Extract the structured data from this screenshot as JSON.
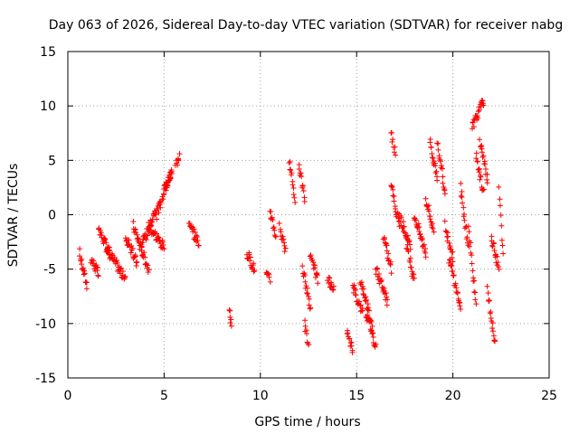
{
  "chart_data": {
    "type": "scatter",
    "title": "Day 063 of 2026, Sidereal Day-to-day VTEC variation (SDTVAR) for receiver nabg",
    "xlabel": "GPS time / hours",
    "ylabel": "SDTVAR / TECUs",
    "xlim": [
      0,
      25
    ],
    "ylim": [
      -15,
      15
    ],
    "xticks": [
      0,
      5,
      10,
      15,
      20,
      25
    ],
    "yticks": [
      -15,
      -10,
      -5,
      0,
      5,
      10,
      15
    ],
    "xtick_labels": [
      "0",
      "5",
      "10",
      "15",
      "20",
      "25"
    ],
    "ytick_labels": [
      "-15",
      "-10",
      "-5",
      "0",
      "5",
      "10",
      "15"
    ],
    "grid": true,
    "marker": "plus",
    "marker_color": "#ff0000",
    "series": [
      {
        "name": "SDTVAR",
        "color": "#ff0000",
        "segments": [
          {
            "x": [
              0.6,
              1.0
            ],
            "y": [
              -3.5,
              -6.5
            ]
          },
          {
            "x": [
              1.2,
              1.6
            ],
            "y": [
              -4.0,
              -5.5
            ]
          },
          {
            "x": [
              1.6,
              2.2
            ],
            "y": [
              -1.5,
              -3.5
            ]
          },
          {
            "x": [
              2.0,
              3.0
            ],
            "y": [
              -3.0,
              -6.0
            ]
          },
          {
            "x": [
              3.0,
              3.6
            ],
            "y": [
              -2.0,
              -4.5
            ]
          },
          {
            "x": [
              3.4,
              4.2
            ],
            "y": [
              -1.0,
              -5.0
            ]
          },
          {
            "x": [
              3.8,
              4.6
            ],
            "y": [
              -3.0,
              0.5
            ]
          },
          {
            "x": [
              4.2,
              5.0
            ],
            "y": [
              -1.0,
              -3.0
            ]
          },
          {
            "x": [
              4.6,
              5.4
            ],
            "y": [
              0.0,
              4.0
            ]
          },
          {
            "x": [
              5.0,
              5.4
            ],
            "y": [
              2.5,
              4.0
            ]
          },
          {
            "x": [
              5.6,
              5.8
            ],
            "y": [
              4.5,
              5.5
            ]
          },
          {
            "x": [
              6.3,
              6.8
            ],
            "y": [
              -1.0,
              -2.5
            ]
          },
          {
            "x": [
              8.4,
              8.5
            ],
            "y": [
              -9.0,
              -10.2
            ]
          },
          {
            "x": [
              9.3,
              9.7
            ],
            "y": [
              -3.5,
              -5.0
            ]
          },
          {
            "x": [
              10.3,
              10.5
            ],
            "y": [
              -5.5,
              -6.0
            ]
          },
          {
            "x": [
              10.5,
              10.8
            ],
            "y": [
              0.5,
              -2.0
            ]
          },
          {
            "x": [
              11.0,
              11.3
            ],
            "y": [
              -1.0,
              -3.5
            ]
          },
          {
            "x": [
              11.5,
              11.8
            ],
            "y": [
              5.0,
              1.5
            ]
          },
          {
            "x": [
              12.0,
              12.3
            ],
            "y": [
              4.5,
              1.5
            ]
          },
          {
            "x": [
              12.2,
              12.6
            ],
            "y": [
              -5.0,
              -8.5
            ]
          },
          {
            "x": [
              12.3,
              12.5
            ],
            "y": [
              -10.0,
              -12.0
            ]
          },
          {
            "x": [
              12.6,
              13.0
            ],
            "y": [
              -4.0,
              -6.0
            ]
          },
          {
            "x": [
              13.5,
              13.8
            ],
            "y": [
              -6.0,
              -7.0
            ]
          },
          {
            "x": [
              14.5,
              14.8
            ],
            "y": [
              -11.0,
              -12.5
            ]
          },
          {
            "x": [
              14.8,
              15.3
            ],
            "y": [
              -6.5,
              -9.0
            ]
          },
          {
            "x": [
              15.2,
              15.8
            ],
            "y": [
              -6.0,
              -10.0
            ]
          },
          {
            "x": [
              15.5,
              16.0
            ],
            "y": [
              -9.0,
              -12.0
            ]
          },
          {
            "x": [
              16.0,
              16.6
            ],
            "y": [
              -5.0,
              -8.0
            ]
          },
          {
            "x": [
              16.4,
              16.8
            ],
            "y": [
              -2.0,
              -5.0
            ]
          },
          {
            "x": [
              16.8,
              17.0
            ],
            "y": [
              7.5,
              5.5
            ]
          },
          {
            "x": [
              16.8,
              17.2
            ],
            "y": [
              3.0,
              -1.0
            ]
          },
          {
            "x": [
              17.2,
              17.8
            ],
            "y": [
              0.0,
              -3.0
            ]
          },
          {
            "x": [
              17.6,
              18.0
            ],
            "y": [
              -3.0,
              -6.0
            ]
          },
          {
            "x": [
              18.0,
              18.6
            ],
            "y": [
              0.0,
              -3.5
            ]
          },
          {
            "x": [
              18.6,
              19.0
            ],
            "y": [
              1.5,
              -1.5
            ]
          },
          {
            "x": [
              18.8,
              19.2
            ],
            "y": [
              7.0,
              3.0
            ]
          },
          {
            "x": [
              19.2,
              19.6
            ],
            "y": [
              6.5,
              2.0
            ]
          },
          {
            "x": [
              19.6,
              20.0
            ],
            "y": [
              -1.0,
              -4.0
            ]
          },
          {
            "x": [
              19.8,
              20.4
            ],
            "y": [
              -4.0,
              -8.5
            ]
          },
          {
            "x": [
              20.4,
              20.8
            ],
            "y": [
              2.5,
              -3.0
            ]
          },
          {
            "x": [
              20.8,
              21.2
            ],
            "y": [
              -1.0,
              -8.5
            ]
          },
          {
            "x": [
              21.0,
              21.6
            ],
            "y": [
              8.0,
              10.5
            ]
          },
          {
            "x": [
              21.2,
              21.6
            ],
            "y": [
              5.5,
              2.0
            ]
          },
          {
            "x": [
              21.4,
              21.8
            ],
            "y": [
              7.0,
              3.0
            ]
          },
          {
            "x": [
              21.8,
              22.2
            ],
            "y": [
              -7.0,
              -12.0
            ]
          },
          {
            "x": [
              22.0,
              22.4
            ],
            "y": [
              -2.0,
              -5.0
            ]
          },
          {
            "x": [
              22.4,
              22.6
            ],
            "y": [
              2.5,
              -4.0
            ]
          }
        ]
      }
    ]
  }
}
